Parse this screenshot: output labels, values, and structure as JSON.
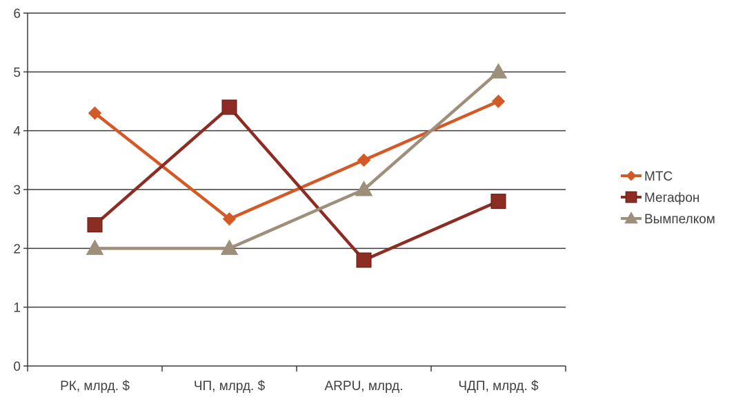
{
  "chart_data": {
    "type": "line",
    "categories": [
      "РК, млрд. $",
      "ЧП, млрд. $",
      "ARPU, млрд.",
      "ЧДП, млрд. $"
    ],
    "ylim": [
      0,
      6
    ],
    "yticks": [
      "0",
      "1",
      "2",
      "3",
      "4",
      "5",
      "6"
    ],
    "grid": true,
    "legend_position": "right",
    "series": [
      {
        "name": "МТС",
        "values": [
          4.3,
          2.5,
          3.5,
          4.5
        ],
        "color": "#d35a27",
        "marker": "diamond"
      },
      {
        "name": "Мегафон",
        "values": [
          2.4,
          4.4,
          1.8,
          2.8
        ],
        "color": "#8c2c22",
        "marker": "square"
      },
      {
        "name": "Вымпелком",
        "values": [
          2.0,
          2.0,
          3.0,
          5.0
        ],
        "color": "#9e8f7a",
        "marker": "triangle"
      }
    ]
  }
}
